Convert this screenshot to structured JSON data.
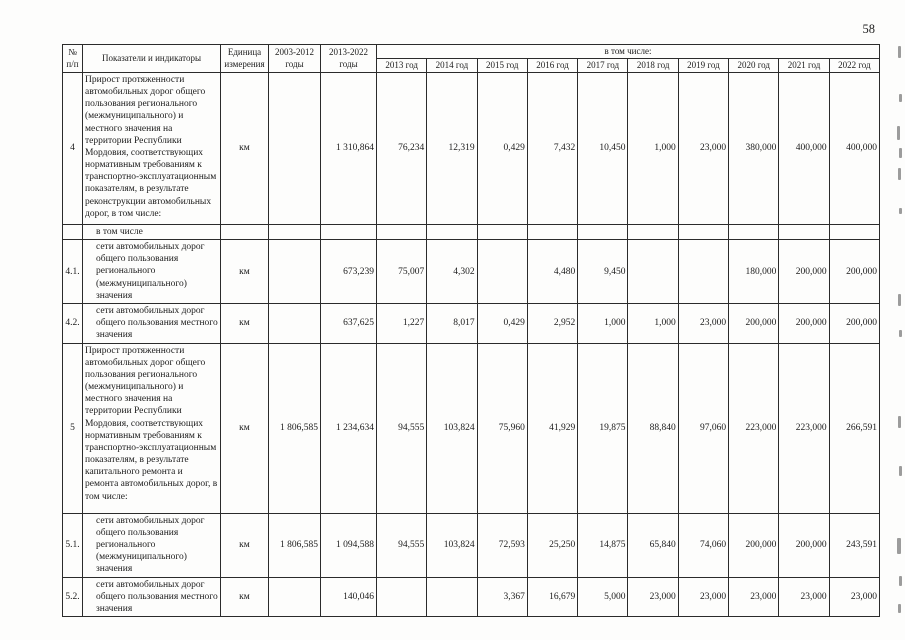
{
  "page": {
    "number": "58"
  },
  "table": {
    "header": {
      "col_num": "№ п/п",
      "col_indicators": "Показатели и индикаторы",
      "col_unit": "Единица измерения",
      "col_2003_2012": "2003-2012 годы",
      "col_2013_2022": "2013-2022 годы",
      "col_including": "в том числе:",
      "years": [
        "2013 год",
        "2014 год",
        "2015 год",
        "2016 год",
        "2017 год",
        "2018 год",
        "2019 год",
        "2020 год",
        "2021 год",
        "2022 год"
      ]
    },
    "rows": [
      {
        "num": "4",
        "indicator": "Прирост протяженности автомобильных дорог общего пользования регионального (межмуниципального) и местного значения на территории Республики Мордовия, соответствующих нормативным требованиям к транспортно-эксплуатационным показателям, в результате реконструкции автомобильных дорог, в том числе:",
        "unit": "км",
        "v2003_2012": "",
        "v2013_2022": "1 310,864",
        "years": [
          "76,234",
          "12,319",
          "0,429",
          "7,432",
          "10,450",
          "1,000",
          "23,000",
          "380,000",
          "400,000",
          "400,000"
        ]
      },
      {
        "type": "subheader",
        "num": "",
        "indicator": "в том числе",
        "unit": "",
        "v2003_2012": "",
        "v2013_2022": "",
        "years": [
          "",
          "",
          "",
          "",
          "",
          "",
          "",
          "",
          "",
          ""
        ]
      },
      {
        "num": "4.1.",
        "indicator": "сети автомобильных дорог общего пользования регионального (межмуниципального) значения",
        "unit": "км",
        "v2003_2012": "",
        "v2013_2022": "673,239",
        "years": [
          "75,007",
          "4,302",
          "",
          "4,480",
          "9,450",
          "",
          "",
          "180,000",
          "200,000",
          "200,000"
        ]
      },
      {
        "num": "4.2.",
        "indicator": "сети автомобильных дорог общего пользования местного значения",
        "unit": "км",
        "v2003_2012": "",
        "v2013_2022": "637,625",
        "years": [
          "1,227",
          "8,017",
          "0,429",
          "2,952",
          "1,000",
          "1,000",
          "23,000",
          "200,000",
          "200,000",
          "200,000"
        ]
      },
      {
        "num": "5",
        "indicator": "Прирост протяженности автомобильных дорог общего пользования регионального (межмуниципального) и местного значения на территории Республики Мордовия, соответствующих нормативным требованиям к транспортно-эксплуатационным показателям, в результате капитального ремонта и ремонта автомобильных дорог, в том числе:",
        "unit": "км",
        "v2003_2012": "1 806,585",
        "v2013_2022": "1 234,634",
        "years": [
          "94,555",
          "103,824",
          "75,960",
          "41,929",
          "19,875",
          "88,840",
          "97,060",
          "223,000",
          "223,000",
          "266,591"
        ]
      },
      {
        "num": "5.1.",
        "indicator": "сети автомобильных дорог общего пользования регионального (межмуниципального) значения",
        "unit": "км",
        "v2003_2012": "1 806,585",
        "v2013_2022": "1 094,588",
        "years": [
          "94,555",
          "103,824",
          "72,593",
          "25,250",
          "14,875",
          "65,840",
          "74,060",
          "200,000",
          "200,000",
          "243,591"
        ]
      },
      {
        "num": "5.2.",
        "indicator": "сети автомобильных дорог общего пользования местного значения",
        "unit": "км",
        "v2003_2012": "",
        "v2013_2022": "140,046",
        "years": [
          "",
          "",
          "3,367",
          "16,679",
          "5,000",
          "23,000",
          "23,000",
          "23,000",
          "23,000",
          "23,000"
        ]
      }
    ]
  }
}
